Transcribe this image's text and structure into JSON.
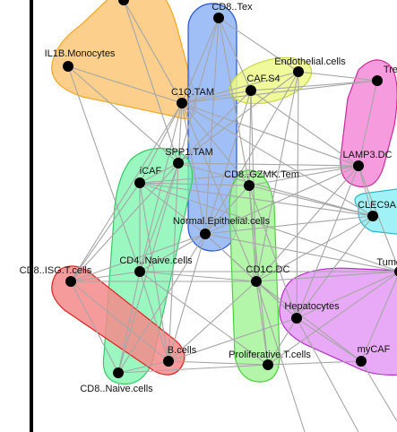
{
  "nodes": [
    {
      "id": "top",
      "label": ""
    },
    {
      "id": "cd8tex",
      "label": "CD8..Tex"
    },
    {
      "id": "il1b",
      "label": "IL1B.Monocytes"
    },
    {
      "id": "endo",
      "label": "Endothelial.cells"
    },
    {
      "id": "caf4",
      "label": "CAF.S4"
    },
    {
      "id": "c1q",
      "label": "C1Q.TAM"
    },
    {
      "id": "treg",
      "label": "Treg"
    },
    {
      "id": "spp1",
      "label": "SPP1.TAM"
    },
    {
      "id": "lamp3",
      "label": "LAMP3.DC"
    },
    {
      "id": "icaf",
      "label": "iCAF"
    },
    {
      "id": "gzmk",
      "label": "CD8..GZMK.Tem"
    },
    {
      "id": "clec9a",
      "label": "CLEC9A.DC"
    },
    {
      "id": "normep",
      "label": "Normal.Epithelial.cells"
    },
    {
      "id": "cd4naive",
      "label": "CD4..Naive.cells"
    },
    {
      "id": "tumor",
      "label": "Tumor"
    },
    {
      "id": "cd8isg",
      "label": "CD8..ISG.T.cells"
    },
    {
      "id": "cd1c",
      "label": "CD1C.DC"
    },
    {
      "id": "hep",
      "label": "Hepatocytes"
    },
    {
      "id": "bcells",
      "label": "B.cells"
    },
    {
      "id": "prolif",
      "label": "Proliferative.T.cells"
    },
    {
      "id": "mycaf",
      "label": "myCAF"
    },
    {
      "id": "cd8naive",
      "label": "CD8..Naive.cells"
    }
  ],
  "edges": [
    [
      "top",
      "c1q"
    ],
    [
      "top",
      "spp1"
    ],
    [
      "il1b",
      "c1q"
    ],
    [
      "il1b",
      "spp1"
    ],
    [
      "il1b",
      "cd4naive"
    ],
    [
      "cd8tex",
      "c1q"
    ],
    [
      "cd8tex",
      "spp1"
    ],
    [
      "cd8tex",
      "normep"
    ],
    [
      "cd8tex",
      "gzmk"
    ],
    [
      "cd8tex",
      "endo"
    ],
    [
      "cd8tex",
      "caf4"
    ],
    [
      "c1q",
      "caf4"
    ],
    [
      "c1q",
      "endo"
    ],
    [
      "c1q",
      "treg"
    ],
    [
      "c1q",
      "lamp3"
    ],
    [
      "c1q",
      "spp1"
    ],
    [
      "c1q",
      "icaf"
    ],
    [
      "c1q",
      "normep"
    ],
    [
      "c1q",
      "gzmk"
    ],
    [
      "c1q",
      "cd4naive"
    ],
    [
      "c1q",
      "cd8isg"
    ],
    [
      "c1q",
      "clec9a"
    ],
    [
      "c1q",
      "cd1c"
    ],
    [
      "spp1",
      "lamp3"
    ],
    [
      "spp1",
      "icaf"
    ],
    [
      "spp1",
      "cd4naive"
    ],
    [
      "spp1",
      "bcells"
    ],
    [
      "spp1",
      "cd8isg"
    ],
    [
      "spp1",
      "endo"
    ],
    [
      "spp1",
      "caf4"
    ],
    [
      "spp1",
      "clec9a"
    ],
    [
      "spp1",
      "cd8naive"
    ],
    [
      "caf4",
      "normep"
    ],
    [
      "caf4",
      "gzmk"
    ],
    [
      "caf4",
      "lamp3"
    ],
    [
      "caf4",
      "cd1c"
    ],
    [
      "caf4",
      "treg"
    ],
    [
      "endo",
      "normep"
    ],
    [
      "endo",
      "cd1c"
    ],
    [
      "endo",
      "hep"
    ],
    [
      "endo",
      "treg"
    ],
    [
      "icaf",
      "normep"
    ],
    [
      "icaf",
      "gzmk"
    ],
    [
      "icaf",
      "clec9a"
    ],
    [
      "icaf",
      "lamp3"
    ],
    [
      "icaf",
      "cd8isg"
    ],
    [
      "icaf",
      "cd4naive"
    ],
    [
      "icaf",
      "bcells"
    ],
    [
      "icaf",
      "tumor"
    ],
    [
      "gzmk",
      "normep"
    ],
    [
      "gzmk",
      "clec9a"
    ],
    [
      "gzmk",
      "lamp3"
    ],
    [
      "gzmk",
      "cd1c"
    ],
    [
      "gzmk",
      "prolif"
    ],
    [
      "gzmk",
      "hep"
    ],
    [
      "normep",
      "cd4naive"
    ],
    [
      "normep",
      "cd1c"
    ],
    [
      "normep",
      "hep"
    ],
    [
      "normep",
      "bcells"
    ],
    [
      "normep",
      "cd8isg"
    ],
    [
      "normep",
      "lamp3"
    ],
    [
      "normep",
      "clec9a"
    ],
    [
      "normep",
      "tumor"
    ],
    [
      "normep",
      "cd8naive"
    ],
    [
      "cd4naive",
      "cd1c"
    ],
    [
      "cd4naive",
      "bcells"
    ],
    [
      "cd4naive",
      "cd8isg"
    ],
    [
      "cd4naive",
      "cd8naive"
    ],
    [
      "cd4naive",
      "prolif"
    ],
    [
      "cd4naive",
      "tumor"
    ],
    [
      "cd1c",
      "hep"
    ],
    [
      "cd1c",
      "prolif"
    ],
    [
      "cd1c",
      "mycaf"
    ],
    [
      "cd1c",
      "tumor"
    ],
    [
      "cd1c",
      "clec9a"
    ],
    [
      "cd1c",
      "lamp3"
    ],
    [
      "cd1c",
      "bcells"
    ],
    [
      "cd1c",
      "cd8isg"
    ],
    [
      "hep",
      "mycaf"
    ],
    [
      "hep",
      "tumor"
    ],
    [
      "hep",
      "prolif"
    ],
    [
      "hep",
      "bcells"
    ],
    [
      "hep",
      "lamp3"
    ],
    [
      "hep",
      "clec9a"
    ],
    [
      "lamp3",
      "treg"
    ],
    [
      "lamp3",
      "clec9a"
    ],
    [
      "lamp3",
      "tumor"
    ],
    [
      "prolif",
      "mycaf"
    ],
    [
      "prolif",
      "bcells"
    ],
    [
      "prolif",
      "cd8naive"
    ],
    [
      "prolif",
      "tumor"
    ],
    [
      "bcells",
      "cd8isg"
    ],
    [
      "bcells",
      "cd8naive"
    ],
    [
      "cd8isg",
      "cd8naive"
    ],
    [
      "mycaf",
      "tumor"
    ],
    [
      "mycaf",
      "exit1"
    ],
    [
      "cd1c",
      "exit2"
    ],
    [
      "hep",
      "exit3"
    ]
  ],
  "clusters": [
    {
      "id": "cluster-orange",
      "color": "#f5a623",
      "fill": "#fbc878"
    },
    {
      "id": "cluster-blue",
      "color": "#2255dd",
      "fill": "#8fb4f5"
    },
    {
      "id": "cluster-yellow",
      "color": "#c8d840",
      "fill": "#eef98a"
    },
    {
      "id": "cluster-pink",
      "color": "#cc2a9a",
      "fill": "#f48ad8"
    },
    {
      "id": "cluster-teal",
      "color": "#28b8c9",
      "fill": "#8ff0f5"
    },
    {
      "id": "cluster-green",
      "color": "#37c86a",
      "fill": "#7df5ae"
    },
    {
      "id": "cluster-lime",
      "color": "#4cd23c",
      "fill": "#a6f59a"
    },
    {
      "id": "cluster-red",
      "color": "#dd2222",
      "fill": "#f58a8a"
    },
    {
      "id": "cluster-violet",
      "color": "#b32ec8",
      "fill": "#e49af5"
    }
  ]
}
